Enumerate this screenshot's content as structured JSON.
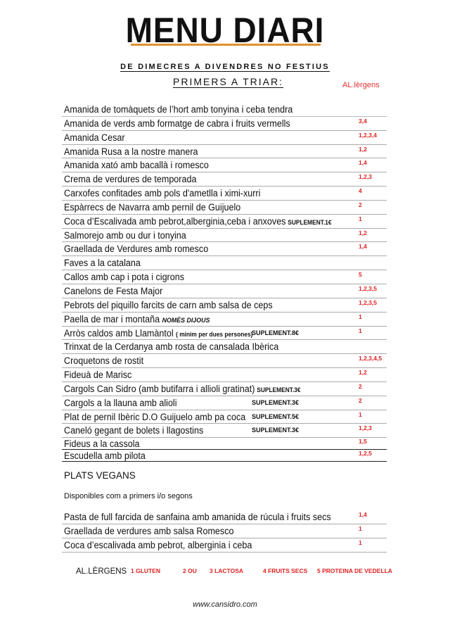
{
  "title": "MENU DIARI",
  "subtitle": "DE DIMECRES A DIVENDRES NO FESTIUS",
  "section": "PRIMERS A TRIAR:",
  "allergens_header": "AL.lèrgens",
  "accent_color": "#e0922d",
  "allergen_color": "#e02020",
  "primers": [
    {
      "name": "Amanida de tomàquets de l’hort amb tonyina i ceba tendra",
      "allergens": ""
    },
    {
      "name": "Amanida de verds amb formatge de cabra i fruits vermells",
      "allergens": "3,4"
    },
    {
      "name": "Amanida Cesar",
      "allergens": "1,2,3,4"
    },
    {
      "name": "Amanida Rusa a la nostre manera",
      "allergens": "1,2"
    },
    {
      "name": "Amanida xató amb bacallà i romesco",
      "allergens": "1,4"
    },
    {
      "name": "Crema de verdures de temporada",
      "allergens": "1,2,3"
    },
    {
      "name": "Carxofes confitades amb pols d'ametlla i ximi-xurri",
      "allergens": "4"
    },
    {
      "name": "Espàrrecs de Navarra amb pernil de Guijuelo",
      "allergens": "2"
    },
    {
      "name": "Coca d’Escalivada amb pebrot,alberginia,ceba i anxoves",
      "supplement": "SUPLEMENT.1€",
      "allergens": "1"
    },
    {
      "name": "Salmorejo amb ou dur i tonyina",
      "allergens": "1,2"
    },
    {
      "name": "Graellada de Verdures amb romesco",
      "allergens": "1,4"
    },
    {
      "name": "Faves a la catalana",
      "allergens": ""
    },
    {
      "name": "Callos amb cap i pota i cigrons",
      "allergens": "5"
    },
    {
      "name": "Canelons de Festa Major",
      "allergens": "1,2,3,5"
    },
    {
      "name": "Pebrots del piquillo farcits de carn amb salsa de ceps",
      "allergens": "1,2,3,5"
    },
    {
      "name": "Paella de mar i montaña",
      "note": "NOMÈS DIJOUS",
      "allergens": "1"
    },
    {
      "name": "Arròs caldos amb Llamàntol",
      "small": "( mínim per dues persones)",
      "supplement": "SUPLEMENT.8€",
      "allergens": "1"
    },
    {
      "name": "Trinxat de la Cerdanya amb rosta de cansalada Ibèrica",
      "allergens": ""
    },
    {
      "name": "Croquetons de rostit",
      "allergens": "1,2,3,4,5"
    },
    {
      "name": "Fideuà de Marisc",
      "allergens": "1,2"
    },
    {
      "name": "Cargols Can Sidro (amb butifarra i allioli gratinat)",
      "supplement": "SUPLEMENT.3€",
      "allergens": "2"
    },
    {
      "name": "Cargols a la llauna amb alioli",
      "supplement": "SUPLEMENT.3€",
      "allergens": "2"
    },
    {
      "name": "Plat de pernil Ibèric D.O Guijuelo amb pa coca",
      "supplement": "SUPLEMENT.5€",
      "allergens": "1"
    },
    {
      "name": "Caneló gegant de bolets i llagostins",
      "supplement": "SUPLEMENT.3€",
      "allergens": "1,2,3"
    },
    {
      "name": "Fideus a la cassola",
      "allergens": "1,5"
    },
    {
      "name": "Escudella amb pilota",
      "allergens": "1,2,5"
    }
  ],
  "vegan": {
    "title": "PLATS VEGANS",
    "subtitle": "Disponibles com a primers i/o segons",
    "items": [
      {
        "name": "Pasta de full farcida de sanfaina amb amanida de rúcula i fruits secs",
        "allergens": "1,4"
      },
      {
        "name": "Graellada de verdures amb salsa Romesco",
        "allergens": "1"
      },
      {
        "name": "Coca d’escalivada amb pebrot, alberginia i ceba",
        "allergens": "1"
      }
    ]
  },
  "legend": {
    "label": "AL.LÈRGENS",
    "items": [
      "1 GLUTEN",
      "2 OU",
      "3 LACTOSA",
      "4 FRUITS SECS",
      "5 PROTEINA DE VEDELLA"
    ]
  },
  "website": "www.cansidro.com"
}
